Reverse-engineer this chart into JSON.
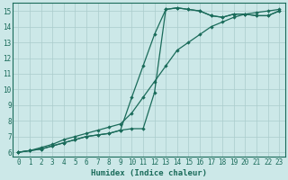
{
  "xlabel": "Humidex (Indice chaleur)",
  "xlim": [
    -0.5,
    23.5
  ],
  "ylim": [
    5.7,
    15.5
  ],
  "xticks": [
    0,
    1,
    2,
    3,
    4,
    5,
    6,
    7,
    8,
    9,
    10,
    11,
    12,
    13,
    14,
    15,
    16,
    17,
    18,
    19,
    20,
    21,
    22,
    23
  ],
  "yticks": [
    6,
    7,
    8,
    9,
    10,
    11,
    12,
    13,
    14,
    15
  ],
  "bg_color": "#cce8e8",
  "grid_color": "#aacccc",
  "line_color": "#1a6b5a",
  "line1_x": [
    0,
    1,
    2,
    3,
    4,
    5,
    6,
    7,
    8,
    9,
    10,
    11,
    12,
    13,
    14,
    15,
    16,
    17,
    18,
    19,
    20,
    21,
    22,
    23
  ],
  "line1_y": [
    6.0,
    6.1,
    6.2,
    6.4,
    6.6,
    6.8,
    7.0,
    7.1,
    7.2,
    7.4,
    7.5,
    7.5,
    9.8,
    15.1,
    15.2,
    15.1,
    15.0,
    14.7,
    14.6,
    14.8,
    14.8,
    14.7,
    14.7,
    15.0
  ],
  "line2_x": [
    0,
    1,
    2,
    3,
    4,
    5,
    6,
    7,
    8,
    9,
    10,
    11,
    12,
    13,
    14,
    15,
    16,
    17,
    18,
    19,
    20,
    21,
    22,
    23
  ],
  "line2_y": [
    6.0,
    6.1,
    6.2,
    6.4,
    6.6,
    6.8,
    7.0,
    7.1,
    7.2,
    7.4,
    9.5,
    11.5,
    13.5,
    15.1,
    15.2,
    15.1,
    15.0,
    14.7,
    14.6,
    14.8,
    14.8,
    14.7,
    14.7,
    15.0
  ],
  "line3_x": [
    0,
    1,
    2,
    3,
    4,
    5,
    6,
    7,
    8,
    9,
    10,
    11,
    12,
    13,
    14,
    15,
    16,
    17,
    18,
    19,
    20,
    21,
    22,
    23
  ],
  "line3_y": [
    6.0,
    6.1,
    6.3,
    6.5,
    6.8,
    7.0,
    7.2,
    7.4,
    7.6,
    7.8,
    8.5,
    9.5,
    10.5,
    11.5,
    12.5,
    13.0,
    13.5,
    14.0,
    14.3,
    14.6,
    14.8,
    14.9,
    15.0,
    15.1
  ]
}
